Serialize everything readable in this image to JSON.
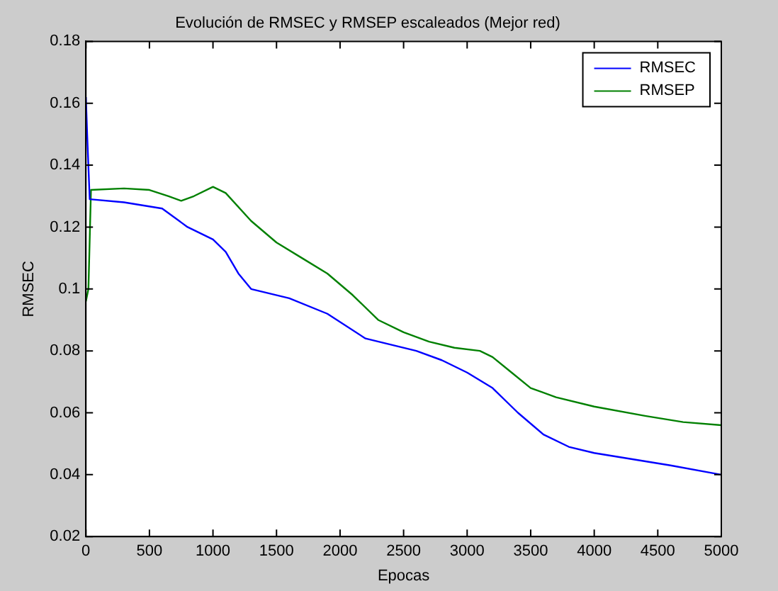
{
  "chart_data": {
    "type": "line",
    "title": "Evolución de RMSEC y RMSEP escaleados (Mejor red)",
    "xlabel": "Epocas",
    "ylabel": "RMSEC",
    "xlim": [
      0,
      5000
    ],
    "xticks": [
      0,
      500,
      1000,
      1500,
      2000,
      2500,
      3000,
      3500,
      4000,
      4500,
      5000
    ],
    "ylim": [
      0.02,
      0.18
    ],
    "yticks": [
      0.02,
      0.04,
      0.06,
      0.08,
      0.1,
      0.12,
      0.14,
      0.16,
      0.18
    ],
    "legend": "top right",
    "grid": false,
    "marker": "none",
    "line_style": "solid",
    "series": [
      {
        "name": "RMSEC",
        "color": "#0000ff",
        "x": [
          0,
          10,
          30,
          300,
          600,
          800,
          1000,
          1100,
          1200,
          1300,
          1600,
          1900,
          2200,
          2600,
          2800,
          3000,
          3200,
          3400,
          3600,
          3800,
          4000,
          4300,
          4600,
          5000
        ],
        "values": [
          0.162,
          0.15,
          0.129,
          0.128,
          0.126,
          0.12,
          0.116,
          0.112,
          0.105,
          0.1,
          0.097,
          0.092,
          0.084,
          0.08,
          0.077,
          0.073,
          0.068,
          0.06,
          0.053,
          0.049,
          0.047,
          0.045,
          0.043,
          0.04
        ]
      },
      {
        "name": "RMSEP",
        "color": "#008000",
        "x": [
          0,
          20,
          40,
          300,
          500,
          650,
          750,
          850,
          1000,
          1100,
          1300,
          1500,
          1700,
          1900,
          2100,
          2300,
          2500,
          2700,
          2900,
          3100,
          3200,
          3350,
          3500,
          3700,
          4000,
          4400,
          4700,
          5000
        ],
        "values": [
          0.096,
          0.1,
          0.132,
          0.1325,
          0.132,
          0.13,
          0.1285,
          0.13,
          0.133,
          0.131,
          0.122,
          0.115,
          0.11,
          0.105,
          0.098,
          0.09,
          0.086,
          0.083,
          0.081,
          0.08,
          0.078,
          0.073,
          0.068,
          0.065,
          0.062,
          0.059,
          0.057,
          0.056
        ]
      }
    ]
  }
}
